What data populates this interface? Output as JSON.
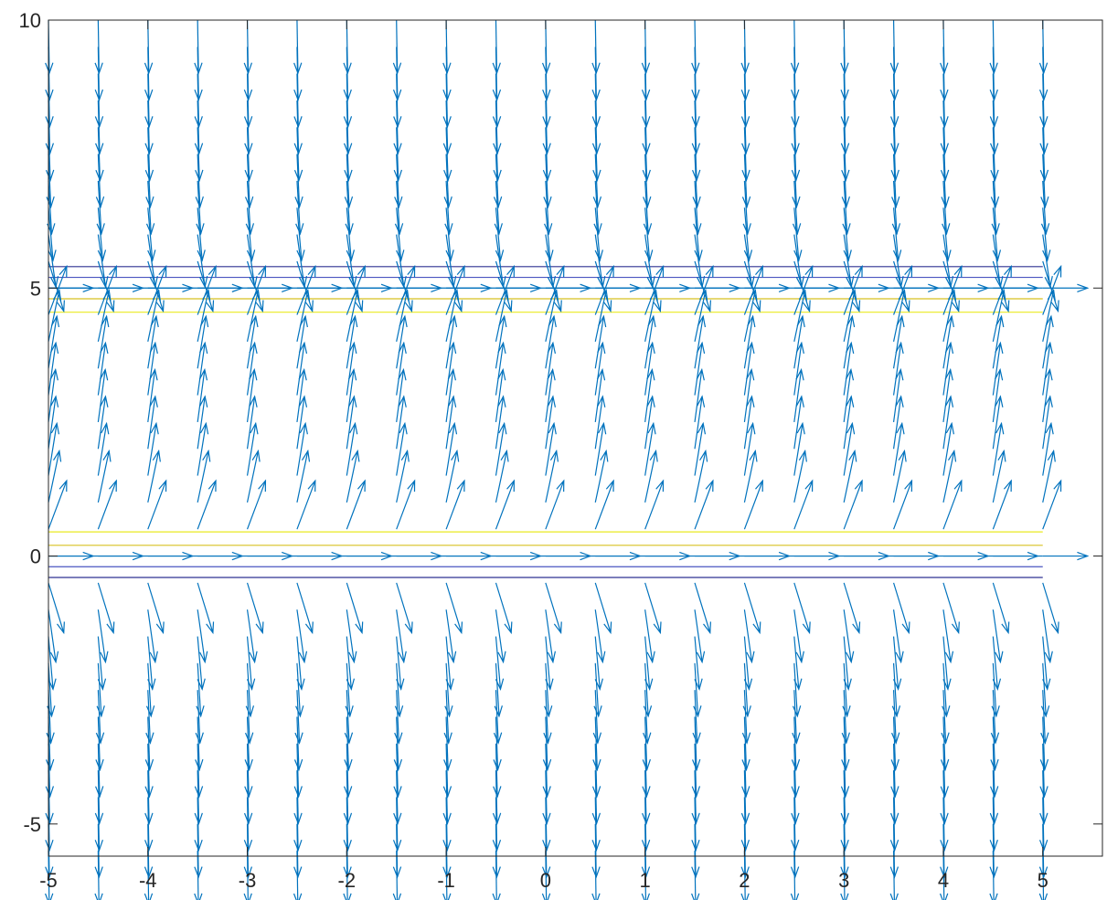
{
  "chart_data": {
    "type": "quiver",
    "title": "",
    "xlabel": "",
    "ylabel": "",
    "xlim": [
      -5,
      5.6
    ],
    "ylim": [
      -5.6,
      10
    ],
    "x_ticks": [
      "-5",
      "-4",
      "-3",
      "-2",
      "-1",
      "0",
      "1",
      "2",
      "3",
      "4",
      "5"
    ],
    "y_ticks": [
      "-5",
      "0",
      "5",
      "10"
    ],
    "grid": false,
    "vector_field": {
      "x_start": -5,
      "x_end": 5,
      "x_step": 0.5,
      "y_start": -5.5,
      "y_end": 10,
      "y_step": 0.5,
      "equilibria": [
        0,
        5
      ],
      "color": "#0072bd"
    },
    "series": [
      {
        "y": 0,
        "x_range": [
          -5,
          5
        ],
        "color": "#0072bd"
      },
      {
        "y": 5,
        "x_range": [
          -5,
          5
        ],
        "color": "#0072bd"
      },
      {
        "y": 5.4,
        "x_range": [
          -5,
          5
        ],
        "color": "#2e3192"
      },
      {
        "y": 5.2,
        "x_range": [
          -5,
          5
        ],
        "color": "#4a55c0"
      },
      {
        "y": 4.8,
        "x_range": [
          -5,
          5
        ],
        "color": "#d8c020"
      },
      {
        "y": 4.55,
        "x_range": [
          -5,
          5
        ],
        "color": "#eaea20"
      },
      {
        "y": 0.45,
        "x_range": [
          -5,
          5
        ],
        "color": "#eaea20"
      },
      {
        "y": 0.2,
        "x_range": [
          -5,
          5
        ],
        "color": "#d8c020"
      },
      {
        "y": -0.2,
        "x_range": [
          -5,
          5
        ],
        "color": "#4a55c0"
      },
      {
        "y": -0.4,
        "x_range": [
          -5,
          5
        ],
        "color": "#2e3192"
      }
    ],
    "axis_color": "#262626"
  }
}
